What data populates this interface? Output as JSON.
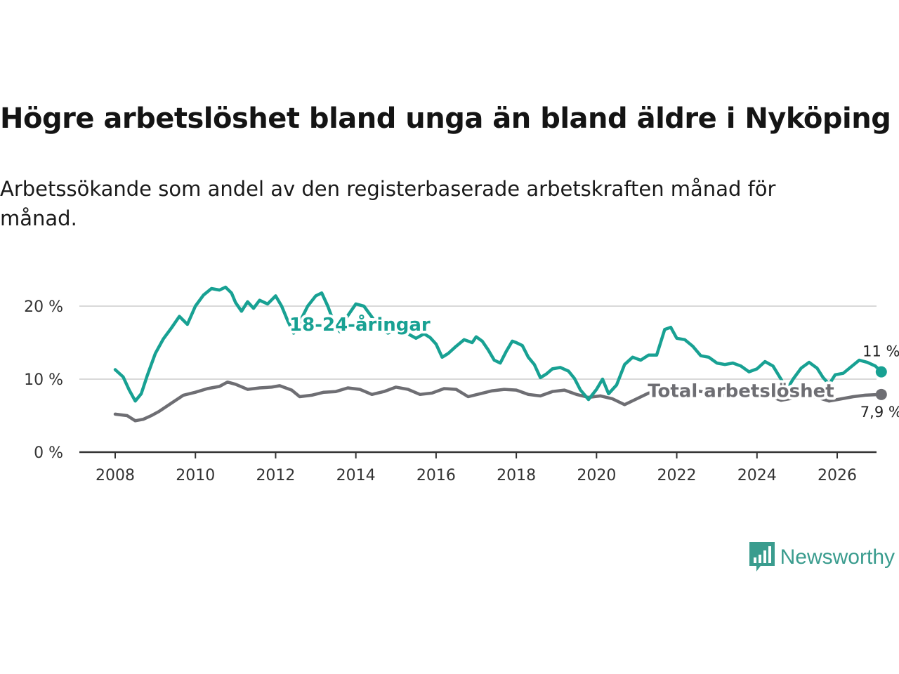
{
  "chart_data": {
    "type": "line",
    "title": "Högre arbetslöshet bland unga än bland äldre i Nyköping",
    "subtitle": "Arbetssökande som andel av den registerbaserade arbetskraften månad för månad.",
    "xlabel": "",
    "ylabel": "",
    "xlim": [
      2007.7,
      2027.1
    ],
    "ylim": [
      0,
      23
    ],
    "x_ticks": [
      2008,
      2010,
      2012,
      2014,
      2016,
      2018,
      2020,
      2022,
      2024,
      2026
    ],
    "x_tick_labels": [
      "2008",
      "2010",
      "2012",
      "2014",
      "2016",
      "2018",
      "2020",
      "2022",
      "2024",
      "2026"
    ],
    "y_ticks": [
      0,
      10,
      20
    ],
    "y_tick_labels": [
      "0 %",
      "10 %",
      "20 %"
    ],
    "grid": "horizontal",
    "legend": "inline labels",
    "series": [
      {
        "name": "18-24-åringar",
        "color": "#18a193",
        "label_x": 2014.1,
        "label_y": 17.5,
        "end_label": "11 %",
        "points": [
          [
            2008.0,
            11.3
          ],
          [
            2008.2,
            10.3
          ],
          [
            2008.35,
            8.5
          ],
          [
            2008.5,
            7.0
          ],
          [
            2008.65,
            8.0
          ],
          [
            2008.8,
            10.5
          ],
          [
            2009.0,
            13.5
          ],
          [
            2009.2,
            15.5
          ],
          [
            2009.4,
            17.0
          ],
          [
            2009.6,
            18.6
          ],
          [
            2009.8,
            17.5
          ],
          [
            2010.0,
            20.0
          ],
          [
            2010.2,
            21.5
          ],
          [
            2010.4,
            22.4
          ],
          [
            2010.6,
            22.2
          ],
          [
            2010.75,
            22.6
          ],
          [
            2010.9,
            21.8
          ],
          [
            2011.0,
            20.5
          ],
          [
            2011.15,
            19.3
          ],
          [
            2011.3,
            20.6
          ],
          [
            2011.45,
            19.7
          ],
          [
            2011.6,
            20.8
          ],
          [
            2011.8,
            20.3
          ],
          [
            2012.0,
            21.4
          ],
          [
            2012.15,
            20.0
          ],
          [
            2012.3,
            18.0
          ],
          [
            2012.45,
            16.3
          ],
          [
            2012.6,
            17.8
          ],
          [
            2012.8,
            20.0
          ],
          [
            2013.0,
            21.4
          ],
          [
            2013.15,
            21.8
          ],
          [
            2013.3,
            20.0
          ],
          [
            2013.45,
            17.8
          ],
          [
            2013.6,
            16.5
          ],
          [
            2013.75,
            18.3
          ],
          [
            2014.0,
            20.3
          ],
          [
            2014.2,
            20.0
          ],
          [
            2014.4,
            18.5
          ],
          [
            2014.6,
            17.0
          ],
          [
            2014.8,
            16.3
          ],
          [
            2015.0,
            16.8
          ],
          [
            2015.15,
            17.3
          ],
          [
            2015.3,
            16.2
          ],
          [
            2015.5,
            15.6
          ],
          [
            2015.7,
            16.2
          ],
          [
            2015.85,
            15.7
          ],
          [
            2016.0,
            14.8
          ],
          [
            2016.15,
            13.0
          ],
          [
            2016.3,
            13.5
          ],
          [
            2016.5,
            14.5
          ],
          [
            2016.7,
            15.4
          ],
          [
            2016.9,
            15.0
          ],
          [
            2017.0,
            15.8
          ],
          [
            2017.15,
            15.2
          ],
          [
            2017.3,
            14.0
          ],
          [
            2017.45,
            12.6
          ],
          [
            2017.6,
            12.2
          ],
          [
            2017.75,
            13.8
          ],
          [
            2017.9,
            15.2
          ],
          [
            2018.0,
            15.0
          ],
          [
            2018.15,
            14.6
          ],
          [
            2018.3,
            13.0
          ],
          [
            2018.45,
            12.0
          ],
          [
            2018.6,
            10.2
          ],
          [
            2018.75,
            10.7
          ],
          [
            2018.9,
            11.4
          ],
          [
            2019.1,
            11.6
          ],
          [
            2019.3,
            11.1
          ],
          [
            2019.45,
            10.1
          ],
          [
            2019.6,
            8.5
          ],
          [
            2019.8,
            7.2
          ],
          [
            2020.0,
            8.6
          ],
          [
            2020.15,
            10.0
          ],
          [
            2020.3,
            8.0
          ],
          [
            2020.5,
            9.2
          ],
          [
            2020.7,
            12.0
          ],
          [
            2020.9,
            13.0
          ],
          [
            2021.1,
            12.6
          ],
          [
            2021.3,
            13.3
          ],
          [
            2021.5,
            13.3
          ],
          [
            2021.7,
            16.8
          ],
          [
            2021.85,
            17.1
          ],
          [
            2022.0,
            15.6
          ],
          [
            2022.2,
            15.4
          ],
          [
            2022.4,
            14.5
          ],
          [
            2022.6,
            13.2
          ],
          [
            2022.8,
            13.0
          ],
          [
            2023.0,
            12.2
          ],
          [
            2023.2,
            12.0
          ],
          [
            2023.4,
            12.2
          ],
          [
            2023.6,
            11.8
          ],
          [
            2023.8,
            11.0
          ],
          [
            2024.0,
            11.4
          ],
          [
            2024.2,
            12.4
          ],
          [
            2024.4,
            11.8
          ],
          [
            2024.6,
            10.0
          ],
          [
            2024.75,
            8.6
          ],
          [
            2024.9,
            10.0
          ],
          [
            2025.1,
            11.5
          ],
          [
            2025.3,
            12.3
          ],
          [
            2025.5,
            11.5
          ],
          [
            2025.65,
            10.2
          ],
          [
            2025.8,
            9.3
          ],
          [
            2025.95,
            10.6
          ],
          [
            2026.15,
            10.8
          ],
          [
            2026.35,
            11.7
          ],
          [
            2026.55,
            12.6
          ],
          [
            2026.75,
            12.3
          ],
          [
            2026.95,
            11.8
          ],
          [
            2027.1,
            11.0
          ]
        ]
      },
      {
        "name": "Total arbetslöshet",
        "color": "#6e6e73",
        "label_x": 2023.6,
        "label_y": 8.4,
        "end_label": "7,9 %",
        "points": [
          [
            2008.0,
            5.2
          ],
          [
            2008.3,
            5.0
          ],
          [
            2008.5,
            4.3
          ],
          [
            2008.7,
            4.5
          ],
          [
            2008.9,
            5.0
          ],
          [
            2009.1,
            5.6
          ],
          [
            2009.4,
            6.7
          ],
          [
            2009.7,
            7.8
          ],
          [
            2010.0,
            8.2
          ],
          [
            2010.3,
            8.7
          ],
          [
            2010.6,
            9.0
          ],
          [
            2010.8,
            9.6
          ],
          [
            2011.0,
            9.3
          ],
          [
            2011.3,
            8.6
          ],
          [
            2011.6,
            8.8
          ],
          [
            2011.9,
            8.9
          ],
          [
            2012.1,
            9.1
          ],
          [
            2012.4,
            8.5
          ],
          [
            2012.6,
            7.6
          ],
          [
            2012.9,
            7.8
          ],
          [
            2013.2,
            8.2
          ],
          [
            2013.5,
            8.3
          ],
          [
            2013.8,
            8.8
          ],
          [
            2014.1,
            8.6
          ],
          [
            2014.4,
            7.9
          ],
          [
            2014.7,
            8.3
          ],
          [
            2015.0,
            8.9
          ],
          [
            2015.3,
            8.6
          ],
          [
            2015.6,
            7.9
          ],
          [
            2015.9,
            8.1
          ],
          [
            2016.2,
            8.7
          ],
          [
            2016.5,
            8.6
          ],
          [
            2016.8,
            7.6
          ],
          [
            2017.1,
            8.0
          ],
          [
            2017.4,
            8.4
          ],
          [
            2017.7,
            8.6
          ],
          [
            2018.0,
            8.5
          ],
          [
            2018.3,
            7.9
          ],
          [
            2018.6,
            7.7
          ],
          [
            2018.9,
            8.3
          ],
          [
            2019.2,
            8.5
          ],
          [
            2019.5,
            7.9
          ],
          [
            2019.8,
            7.5
          ],
          [
            2020.1,
            7.7
          ],
          [
            2020.4,
            7.3
          ],
          [
            2020.7,
            6.5
          ],
          [
            2021.0,
            7.3
          ],
          [
            2021.3,
            8.1
          ],
          [
            2021.6,
            8.3
          ],
          [
            2021.9,
            8.1
          ],
          [
            2022.2,
            8.5
          ],
          [
            2022.5,
            8.4
          ],
          [
            2022.8,
            8.1
          ],
          [
            2023.1,
            7.7
          ],
          [
            2023.4,
            7.9
          ],
          [
            2023.7,
            8.1
          ],
          [
            2024.0,
            7.7
          ],
          [
            2024.3,
            7.7
          ],
          [
            2024.6,
            7.1
          ],
          [
            2024.9,
            7.4
          ],
          [
            2025.2,
            7.7
          ],
          [
            2025.5,
            7.5
          ],
          [
            2025.8,
            7.0
          ],
          [
            2026.1,
            7.3
          ],
          [
            2026.4,
            7.6
          ],
          [
            2026.7,
            7.8
          ],
          [
            2027.1,
            7.9
          ]
        ]
      }
    ]
  },
  "brand": {
    "name": "Newsworthy",
    "color": "#3a9c8e",
    "icon": "bar-chart-speech-bubble-icon"
  }
}
